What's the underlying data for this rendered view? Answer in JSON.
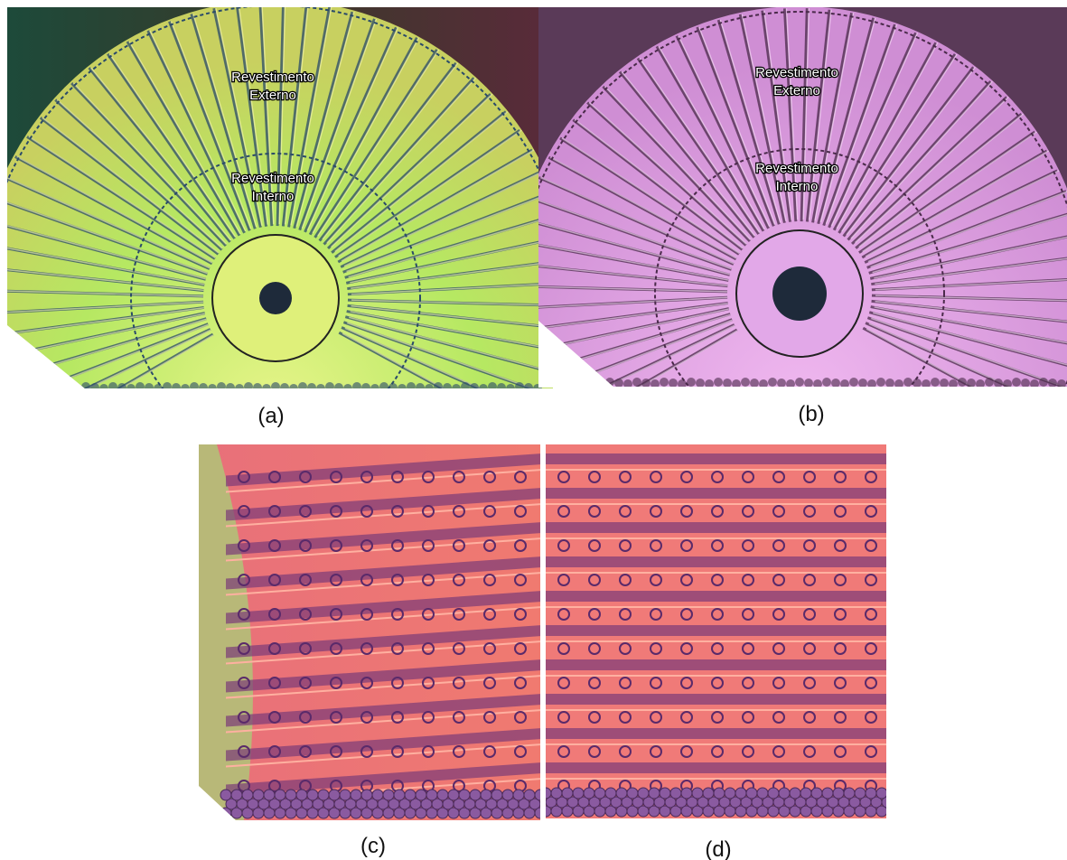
{
  "panels": [
    {
      "label": "(a)",
      "outer_lining": [
        "Revestimento",
        "Externo"
      ],
      "inner_lining": [
        "Revestimento",
        "Interno"
      ]
    },
    {
      "label": "(b)",
      "outer_lining": [
        "Revestimento",
        "Externo"
      ],
      "inner_lining": [
        "Revestimento",
        "Interno"
      ]
    },
    {
      "label": "(c)"
    },
    {
      "label": "(d)"
    }
  ]
}
